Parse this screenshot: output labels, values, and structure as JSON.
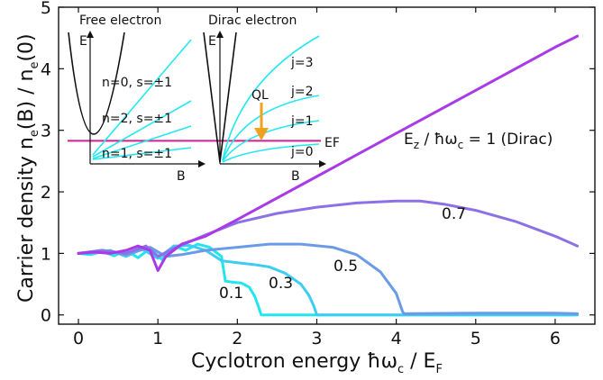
{
  "chart_data": {
    "type": "line",
    "xlabel": "Cyclotron energy ħω",
    "xlabel_sub": "c",
    "xlabel_tail": " / E",
    "xlabel_tail_sub": "F",
    "ylabel": "Carrier density n",
    "ylabel_sub1": "e",
    "ylabel_mid": "(B) / n",
    "ylabel_sub2": "e",
    "ylabel_tail": "(0)",
    "xlim": [
      -0.25,
      6.5
    ],
    "ylim": [
      -0.15,
      5
    ],
    "xticks": [
      "0",
      "1",
      "2",
      "3",
      "4",
      "5",
      "6"
    ],
    "yticks": [
      "0",
      "1",
      "2",
      "3",
      "4",
      "5"
    ],
    "series": [
      {
        "name": "0.1",
        "color": "#22e6ee",
        "x": [
          0,
          0.15,
          0.3,
          0.45,
          0.6,
          0.75,
          0.9,
          1.05,
          1.2,
          1.35,
          1.5,
          1.65,
          1.8,
          1.85,
          1.95,
          2.05,
          2.15,
          2.22,
          2.27,
          2.3,
          3,
          4,
          5,
          6,
          6.25
        ],
        "y": [
          1.0,
          0.98,
          1.03,
          0.96,
          1.05,
          0.93,
          1.08,
          0.9,
          1.12,
          1.05,
          1.15,
          1.1,
          0.95,
          0.55,
          0.53,
          0.52,
          0.45,
          0.3,
          0.12,
          0.0,
          0.0,
          0.0,
          0.0,
          0.0,
          0.0
        ]
      },
      {
        "name": "0.3",
        "color": "#3ecdf1",
        "x": [
          0,
          0.2,
          0.4,
          0.6,
          0.8,
          1.0,
          1.2,
          1.4,
          1.6,
          1.78,
          1.8,
          2.0,
          2.2,
          2.4,
          2.6,
          2.8,
          2.9,
          2.96,
          3.0,
          4,
          5,
          6,
          6.28
        ],
        "y": [
          1.0,
          1.0,
          1.05,
          0.95,
          1.07,
          0.92,
          1.12,
          1.13,
          1.05,
          0.9,
          0.88,
          0.85,
          0.82,
          0.78,
          0.68,
          0.5,
          0.32,
          0.15,
          0.0,
          0.0,
          0.0,
          0.0,
          0.0
        ]
      },
      {
        "name": "0.5",
        "color": "#6a9be6",
        "x": [
          0,
          0.3,
          0.6,
          0.9,
          1.1,
          1.3,
          1.6,
          2.0,
          2.4,
          2.8,
          3.2,
          3.5,
          3.8,
          4.0,
          4.08,
          4.1,
          5,
          6,
          6.28
        ],
        "y": [
          1.0,
          1.05,
          0.98,
          1.1,
          0.95,
          0.98,
          1.05,
          1.1,
          1.15,
          1.15,
          1.1,
          0.98,
          0.7,
          0.35,
          0.05,
          0.02,
          0.03,
          0.03,
          0.02
        ]
      },
      {
        "name": "0.7",
        "color": "#8c71e6",
        "x": [
          0,
          0.3,
          0.6,
          0.85,
          1.0,
          1.2,
          1.6,
          2.0,
          2.5,
          3.0,
          3.5,
          4.0,
          4.3,
          4.6,
          5.0,
          5.5,
          6.0,
          6.28
        ],
        "y": [
          1.0,
          1.05,
          1.0,
          1.12,
          0.95,
          1.08,
          1.3,
          1.5,
          1.65,
          1.75,
          1.82,
          1.85,
          1.85,
          1.8,
          1.7,
          1.52,
          1.28,
          1.12
        ]
      },
      {
        "name": "E",
        "color": "#a83ae8",
        "x": [
          0,
          0.2,
          0.4,
          0.6,
          0.75,
          0.9,
          1.0,
          1.1,
          1.3,
          1.6,
          2.0,
          3.0,
          4.0,
          5.0,
          6.0,
          6.28
        ],
        "y": [
          1.0,
          1.02,
          1.0,
          1.05,
          1.12,
          1.05,
          0.72,
          0.95,
          1.15,
          1.28,
          1.55,
          2.25,
          2.95,
          3.65,
          4.35,
          4.53
        ]
      }
    ],
    "labels": {
      "s01": "0.1",
      "s03": "0.3",
      "s05": "0.5",
      "s07": "0.7",
      "dirac_main": "E",
      "dirac_sub": "z",
      "dirac_rest": " / ħω",
      "dirac_sub2": "c",
      "dirac_tail": " = 1 (Dirac)"
    },
    "fermi_line": {
      "y": 2.83,
      "color": "#d01f8f"
    },
    "inset_free": {
      "title": "Free electron",
      "ylabel": "E",
      "xlabel": "B",
      "levels": [
        "n=0, s=±1",
        "n=2, s=±1",
        "n=1, s=±1"
      ]
    },
    "inset_dirac": {
      "title": "Dirac electron",
      "ylabel": "E",
      "xlabel": "B",
      "levels": [
        "j=3",
        "j=2",
        "j=1",
        "j=0"
      ],
      "ql": "QL",
      "ef": "EF"
    }
  }
}
